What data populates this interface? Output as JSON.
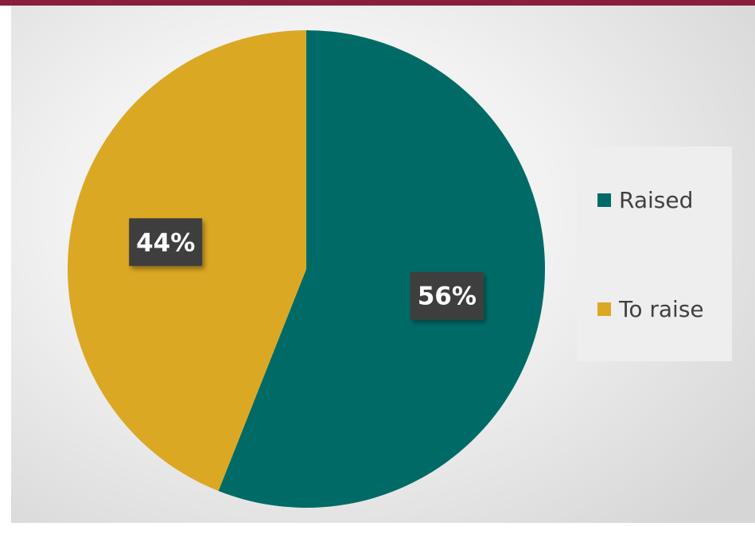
{
  "chart_data": {
    "type": "pie",
    "title": "",
    "categories": [
      "Raised",
      "To raise"
    ],
    "values": [
      56,
      44
    ],
    "data_labels": [
      "56%",
      "44%"
    ],
    "colors": [
      "#006b66",
      "#dba824"
    ],
    "legend_position": "right",
    "start_angle_deg": 0,
    "direction": "clockwise"
  },
  "legend": {
    "items": [
      {
        "label": "Raised",
        "color": "#006b66"
      },
      {
        "label": "To raise",
        "color": "#dba824"
      }
    ]
  },
  "colors": {
    "top_bar": "#8b1e3f",
    "data_label_background": "#3a3a3a",
    "data_label_text": "#ffffff"
  }
}
